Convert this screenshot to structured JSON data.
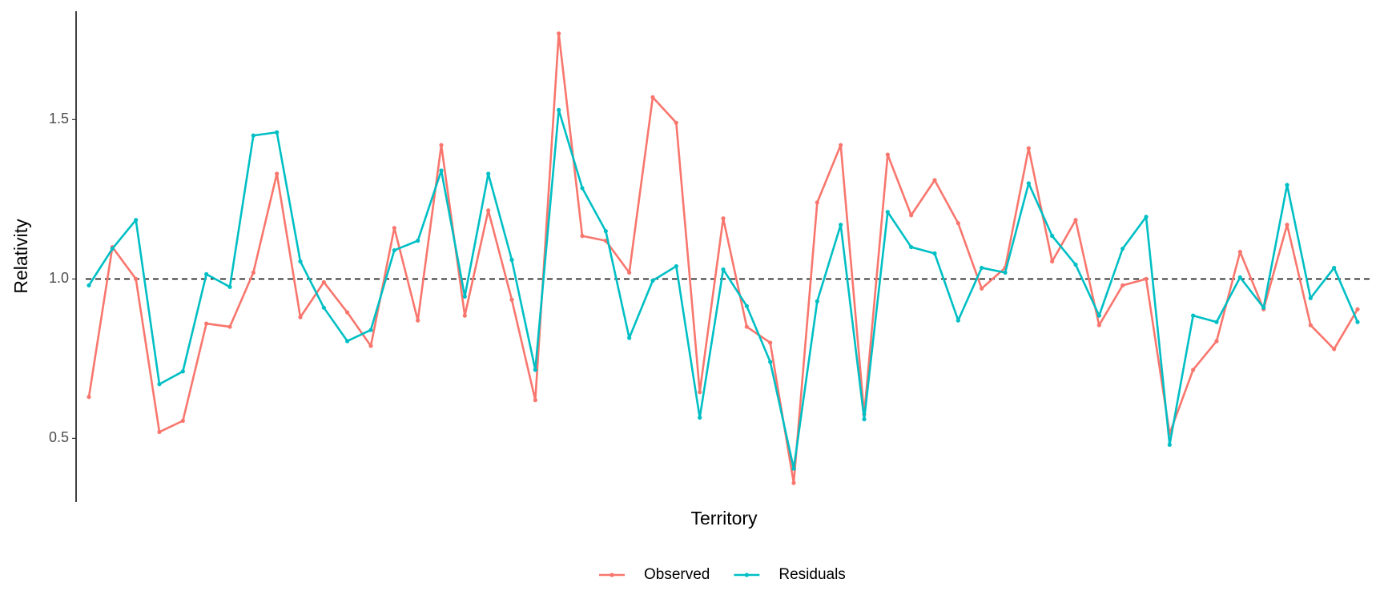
{
  "chart_data": {
    "type": "line",
    "x_label": "Territory",
    "y_label": "Relativity",
    "categories": [
      null,
      null,
      null,
      null,
      null,
      null,
      null,
      null,
      null,
      null,
      null,
      null,
      null,
      null,
      null,
      null,
      null,
      null,
      null,
      null,
      null,
      null,
      null,
      null,
      null,
      null,
      null,
      null,
      null,
      null,
      null,
      null,
      null,
      null,
      null,
      null,
      null,
      null,
      null,
      null,
      null,
      null,
      null,
      null,
      null,
      null,
      null,
      null,
      null,
      null,
      null,
      null,
      null,
      null,
      null
    ],
    "series": [
      {
        "name": "Observed",
        "color": "#F8766D",
        "values": [
          0.63,
          1.1,
          1.0,
          0.52,
          0.555,
          0.86,
          0.85,
          1.02,
          1.33,
          0.88,
          0.99,
          0.895,
          0.79,
          1.16,
          0.87,
          1.42,
          0.885,
          1.215,
          0.935,
          0.62,
          1.77,
          1.135,
          1.12,
          1.02,
          1.57,
          1.49,
          0.645,
          1.19,
          0.85,
          0.8,
          0.36,
          1.24,
          1.42,
          0.575,
          1.39,
          1.2,
          1.31,
          1.175,
          0.97,
          1.035,
          1.41,
          1.055,
          1.185,
          0.855,
          0.98,
          1.0,
          0.515,
          0.715,
          0.805,
          1.085,
          0.905,
          1.17,
          0.855,
          0.78,
          0.905
        ]
      },
      {
        "name": "Residuals",
        "color": "#00BFC4",
        "values": [
          0.98,
          1.095,
          1.185,
          0.67,
          0.71,
          1.015,
          0.975,
          1.45,
          1.46,
          1.055,
          0.91,
          0.805,
          0.84,
          1.09,
          1.12,
          1.34,
          0.945,
          1.33,
          1.06,
          0.715,
          1.53,
          1.285,
          1.15,
          0.815,
          0.995,
          1.04,
          0.565,
          1.03,
          0.915,
          0.74,
          0.405,
          0.93,
          1.17,
          0.56,
          1.21,
          1.1,
          1.08,
          0.87,
          1.035,
          1.02,
          1.3,
          1.135,
          1.045,
          0.885,
          1.095,
          1.195,
          0.48,
          0.885,
          0.865,
          1.005,
          0.91,
          1.295,
          0.94,
          1.035,
          0.865
        ]
      }
    ],
    "ylim": [
      0.3,
      1.84
    ],
    "yticks": [
      0.5,
      {
        "value": 1,
        "label": "1.0"
      },
      1.5
    ],
    "reference_line": 1,
    "grid": false,
    "legend": "bottom"
  }
}
